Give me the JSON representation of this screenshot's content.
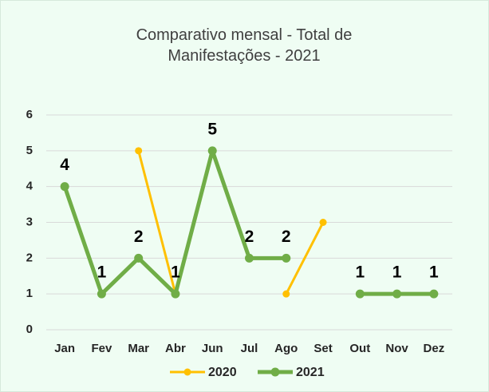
{
  "chart_data": {
    "type": "line",
    "title": "Comparativo mensal - Total de Manifestações - 2021",
    "categories": [
      "Jan",
      "Fev",
      "Mar",
      "Abr",
      "Jun",
      "Jul",
      "Ago",
      "Set",
      "Out",
      "Nov",
      "Dez"
    ],
    "series": [
      {
        "name": "2020",
        "color": "#ffc000",
        "values": [
          null,
          null,
          5,
          1,
          null,
          null,
          1,
          3,
          null,
          null,
          null
        ]
      },
      {
        "name": "2021",
        "color": "#70ad47",
        "values": [
          4,
          1,
          2,
          1,
          5,
          2,
          2,
          null,
          1,
          1,
          1
        ]
      }
    ],
    "ylim": [
      0,
      6
    ],
    "yticks": [
      0,
      1,
      2,
      3,
      4,
      5,
      6
    ],
    "grid": true,
    "legend": "bottom"
  }
}
